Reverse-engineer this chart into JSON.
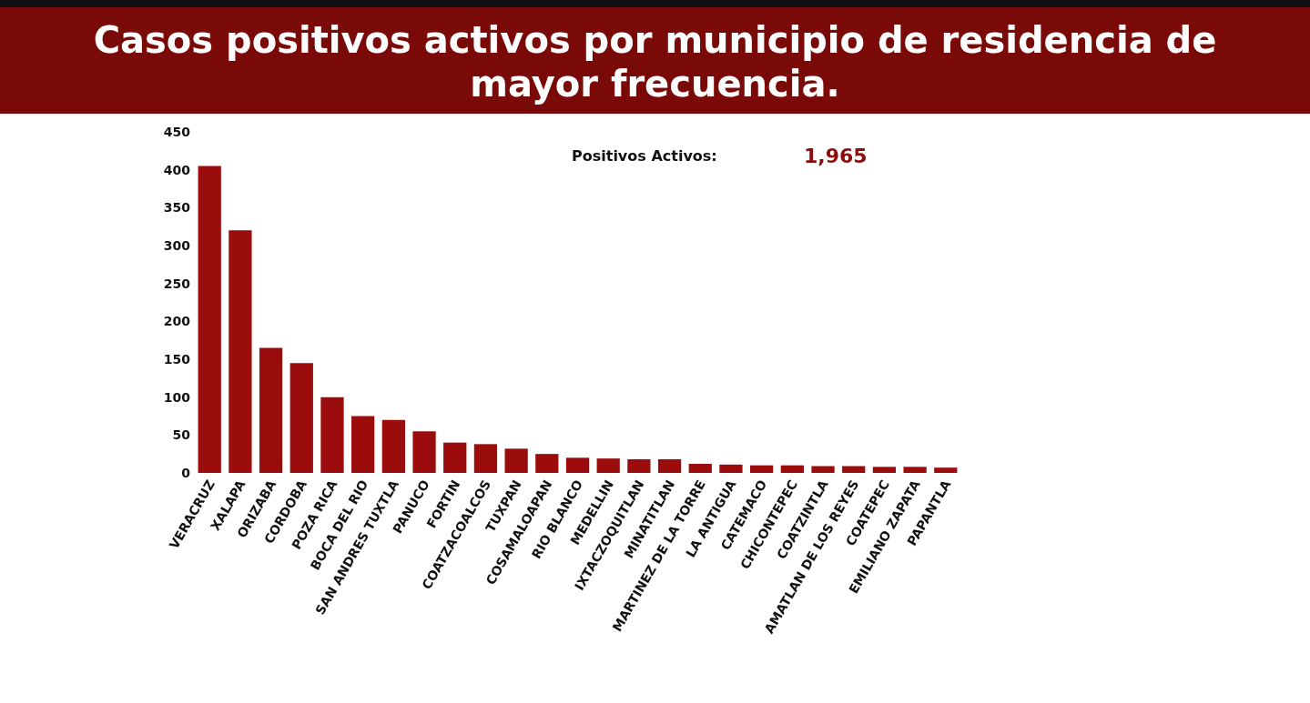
{
  "chart_data": {
    "type": "bar",
    "title": "Casos positivos activos por municipio de residencia de mayor frecuencia.",
    "categories": [
      "VERACRUZ",
      "XALAPA",
      "ORIZABA",
      "CORDOBA",
      "POZA RICA",
      "BOCA DEL RIO",
      "SAN ANDRES TUXTLA",
      "PANUCO",
      "FORTIN",
      "COATZACOALCOS",
      "TUXPAN",
      "COSAMALOAPAN",
      "RIO BLANCO",
      "MEDELLIN",
      "IXTACZOQUITLAN",
      "MINATITLAN",
      "MARTINEZ DE LA TORRE",
      "LA ANTIGUA",
      "CATEMACO",
      "CHICONTEPEC",
      "COATZINTLA",
      "AMATLAN DE LOS REYES",
      "COATEPEC",
      "EMILIANO ZAPATA",
      "PAPANTLA"
    ],
    "values": [
      405,
      320,
      165,
      145,
      100,
      75,
      70,
      55,
      40,
      38,
      32,
      25,
      20,
      19,
      18,
      18,
      12,
      11,
      10,
      10,
      9,
      9,
      8,
      8,
      7
    ],
    "color": "#9b0d0d",
    "ylim": [
      0,
      450
    ],
    "yticks": [
      0,
      50,
      100,
      150,
      200,
      250,
      300,
      350,
      400,
      450
    ],
    "grid": false,
    "annotations": [
      "Positivos Activos:",
      "1,965"
    ]
  }
}
